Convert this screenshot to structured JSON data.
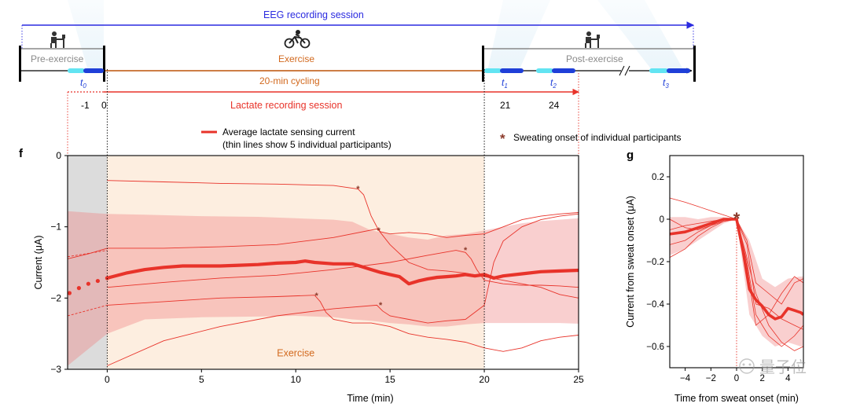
{
  "timeline": {
    "eeg_label": "EEG recording session",
    "phases": {
      "pre": "Pre-exercise",
      "exercise": "Exercise",
      "post": "Post-exercise"
    },
    "cycling_label": "20-min cycling",
    "lactate_label": "Lactate recording session",
    "t_labels": [
      {
        "name": "t0",
        "base": "t",
        "sub": "0"
      },
      {
        "name": "t1",
        "base": "t",
        "sub": "1"
      },
      {
        "name": "t2",
        "base": "t",
        "sub": "2"
      },
      {
        "name": "t3",
        "base": "t",
        "sub": "3"
      }
    ],
    "time_marks": [
      "-1",
      "0",
      "21",
      "24"
    ],
    "icons": [
      "desk-person-icon",
      "cyclist-icon",
      "desk-person-icon"
    ],
    "colors": {
      "eeg": "#2b2be0",
      "exercise": "#d2691e",
      "lactate": "#e8332a",
      "pre_text": "#8a8a8a",
      "post_text": "#8a8a8a",
      "highlight_cyan": "#62e4f2",
      "highlight_blue": "#1f3fd8"
    }
  },
  "legend": {
    "avg_label_line1": "Average lactate sensing current",
    "avg_label_line2": "(thin lines show 5 individual participants)",
    "onset_symbol": "*",
    "onset_label": "Sweating onset of individual participants"
  },
  "chart_data": [
    {
      "panel": "f",
      "type": "line",
      "xlabel": "Time (min)",
      "ylabel": "Current (μA)",
      "xlim": [
        -2.1,
        25
      ],
      "ylim": [
        -3,
        0
      ],
      "xticks": [
        0,
        5,
        10,
        15,
        20,
        25
      ],
      "yticks": [
        0,
        -1,
        -2,
        -3
      ],
      "ytick_labels": [
        "0",
        "−1",
        "−2",
        "−3"
      ],
      "shaded_region_label": "Exercise",
      "exercise_range": [
        0,
        20
      ],
      "baseline_range": [
        -2.1,
        0
      ],
      "average": {
        "x": [
          -2.0,
          -1.5,
          -1.0,
          -0.5,
          0,
          1,
          2,
          3,
          4,
          5,
          6,
          7,
          8,
          9,
          10,
          10.5,
          11,
          12,
          13,
          13.5,
          14,
          14.5,
          15,
          15.5,
          16,
          16.5,
          17,
          17.5,
          18,
          18.5,
          19,
          19.5,
          20,
          20.5,
          21,
          22,
          23,
          24,
          25
        ],
        "y": [
          -1.93,
          -1.86,
          -1.8,
          -1.76,
          -1.72,
          -1.65,
          -1.6,
          -1.57,
          -1.55,
          -1.55,
          -1.55,
          -1.54,
          -1.53,
          -1.51,
          -1.5,
          -1.48,
          -1.5,
          -1.52,
          -1.52,
          -1.56,
          -1.6,
          -1.64,
          -1.67,
          -1.7,
          -1.8,
          -1.76,
          -1.73,
          -1.71,
          -1.7,
          -1.69,
          -1.67,
          -1.69,
          -1.67,
          -1.72,
          -1.69,
          -1.66,
          -1.63,
          -1.62,
          -1.61
        ]
      },
      "band_upper": {
        "x": [
          -2.1,
          0,
          2,
          5,
          8,
          10,
          12,
          13,
          14,
          15,
          16,
          17,
          18,
          19,
          20,
          21,
          22,
          23,
          24,
          25
        ],
        "y": [
          -0.78,
          -0.82,
          -0.83,
          -0.85,
          -0.86,
          -0.88,
          -0.9,
          -0.93,
          -1.05,
          -1.1,
          -1.15,
          -1.18,
          -1.12,
          -1.1,
          -1.05,
          -1.0,
          -0.95,
          -0.92,
          -0.9,
          -0.88
        ]
      },
      "band_lower": {
        "x": [
          -2.1,
          0,
          2,
          5,
          8,
          10,
          12,
          13,
          14,
          15,
          16,
          17,
          18,
          19,
          20,
          21,
          22,
          23,
          24,
          25
        ],
        "y": [
          -2.95,
          -2.5,
          -2.3,
          -2.27,
          -2.26,
          -2.25,
          -2.27,
          -2.3,
          -2.32,
          -2.35,
          -2.37,
          -2.4,
          -2.4,
          -2.37,
          -2.35,
          -2.35,
          -2.35,
          -2.35,
          -2.35,
          -2.36
        ]
      },
      "participants": [
        {
          "x": [
            0,
            3,
            6,
            9,
            12,
            13.3,
            13.6,
            14.0,
            14.4,
            15,
            16,
            17,
            18,
            19,
            20,
            21,
            22,
            23,
            24,
            25
          ],
          "y": [
            -0.35,
            -0.37,
            -0.39,
            -0.4,
            -0.42,
            -0.47,
            -0.55,
            -0.85,
            -1.05,
            -1.25,
            -1.5,
            -1.6,
            -1.62,
            -1.65,
            -1.7,
            -1.75,
            -1.8,
            -1.85,
            -1.95,
            -2.0
          ]
        },
        {
          "x": [
            -2.1,
            -1,
            0,
            3,
            6,
            9,
            12,
            14.3,
            14.5,
            15,
            16,
            17,
            18,
            19,
            20,
            21,
            22,
            23,
            24,
            25
          ],
          "y": [
            -1.45,
            -1.38,
            -1.3,
            -1.3,
            -1.28,
            -1.25,
            -1.15,
            -1.03,
            -1.07,
            -1.1,
            -1.08,
            -1.1,
            -1.15,
            -1.12,
            -1.1,
            -1.0,
            -0.9,
            -0.85,
            -0.82,
            -0.8
          ]
        },
        {
          "x": [
            0,
            3,
            6,
            9,
            12,
            14.3,
            14.6,
            15,
            16,
            17,
            18,
            19,
            19.5,
            20,
            20.5,
            21,
            22,
            23,
            24,
            25
          ],
          "y": [
            -2.95,
            -2.6,
            -2.4,
            -2.25,
            -2.15,
            -2.1,
            -2.18,
            -2.25,
            -2.3,
            -2.35,
            -2.32,
            -2.3,
            -2.2,
            -2.1,
            -1.5,
            -1.2,
            -1.0,
            -0.9,
            -0.85,
            -0.82
          ]
        },
        {
          "x": [
            0,
            3,
            6,
            9,
            11.0,
            11.3,
            11.6,
            12,
            13,
            14,
            15,
            16,
            17,
            18,
            19,
            20,
            21,
            22,
            23,
            24,
            25
          ],
          "y": [
            -2.1,
            -2.05,
            -2.0,
            -1.98,
            -1.96,
            -2.05,
            -2.2,
            -2.3,
            -2.35,
            -2.35,
            -2.4,
            -2.5,
            -2.55,
            -2.58,
            -2.62,
            -2.7,
            -2.75,
            -2.7,
            -2.6,
            -2.55,
            -2.52
          ]
        },
        {
          "x": [
            0,
            3,
            6,
            9,
            12,
            15,
            17,
            18.5,
            19.0,
            19.3,
            19.6,
            20,
            21,
            22,
            23,
            24,
            25
          ],
          "y": [
            -1.85,
            -1.78,
            -1.72,
            -1.68,
            -1.6,
            -1.5,
            -1.4,
            -1.33,
            -1.36,
            -1.45,
            -1.6,
            -1.75,
            -1.8,
            -1.82,
            -1.82,
            -1.83,
            -1.85
          ]
        }
      ],
      "sweat_onsets": [
        {
          "x": 13.3,
          "y": -0.47
        },
        {
          "x": 14.4,
          "y": -1.05
        },
        {
          "x": 11.1,
          "y": -1.97
        },
        {
          "x": 14.5,
          "y": -2.1
        },
        {
          "x": 19.0,
          "y": -1.33
        }
      ]
    },
    {
      "panel": "g",
      "type": "line",
      "xlabel": "Time from sweat onset (min)",
      "ylabel": "Current from sweat onset (μA)",
      "xlim": [
        -5.2,
        5.2
      ],
      "ylim": [
        -0.7,
        0.3
      ],
      "xticks": [
        -4,
        -2,
        0,
        2,
        4
      ],
      "xtick_labels": [
        "−4",
        "−2",
        "0",
        "2",
        "4"
      ],
      "yticks": [
        0.2,
        0,
        -0.2,
        -0.4,
        -0.6
      ],
      "ytick_labels": [
        "0.2",
        "0",
        "−0.2",
        "−0.4",
        "−0.6"
      ],
      "average": {
        "x": [
          -5.2,
          -4,
          -3,
          -2,
          -1,
          0,
          0.5,
          1,
          1.5,
          2,
          2.5,
          3,
          3.5,
          4,
          4.5,
          5,
          5.2
        ],
        "y": [
          -0.07,
          -0.06,
          -0.04,
          -0.02,
          0.0,
          0.0,
          -0.15,
          -0.33,
          -0.38,
          -0.41,
          -0.45,
          -0.47,
          -0.46,
          -0.42,
          -0.43,
          -0.44,
          -0.45
        ]
      },
      "band_upper": {
        "x": [
          -5.2,
          -4,
          -3,
          -2,
          -1,
          0,
          1,
          2,
          3,
          4,
          5,
          5.2
        ],
        "y": [
          0.01,
          0.01,
          0.0,
          0.01,
          0.01,
          0.0,
          -0.1,
          -0.28,
          -0.32,
          -0.28,
          -0.27,
          -0.27
        ]
      },
      "band_lower": {
        "x": [
          -5.2,
          -4,
          -3,
          -2,
          -1,
          0,
          1,
          2,
          3,
          4,
          5,
          5.2
        ],
        "y": [
          -0.17,
          -0.14,
          -0.1,
          -0.06,
          -0.02,
          0.0,
          -0.45,
          -0.55,
          -0.6,
          -0.58,
          -0.6,
          -0.6
        ]
      },
      "participants": [
        {
          "x": [
            -5.2,
            -4,
            -3,
            -2,
            -1,
            0,
            0.8,
            1.5,
            2.5,
            3.5,
            4.5,
            5.2
          ],
          "y": [
            0.1,
            0.08,
            0.06,
            0.04,
            0.02,
            0.0,
            -0.2,
            -0.45,
            -0.55,
            -0.6,
            -0.55,
            -0.5
          ]
        },
        {
          "x": [
            -5.2,
            -4,
            -3,
            -2,
            -1,
            0,
            0.8,
            1.5,
            2.5,
            3.5,
            4.5,
            5.2
          ],
          "y": [
            -0.18,
            -0.14,
            -0.08,
            -0.04,
            -0.01,
            0.0,
            -0.1,
            -0.3,
            -0.35,
            -0.4,
            -0.3,
            -0.28
          ]
        },
        {
          "x": [
            -5.2,
            -4,
            -3,
            -2,
            -1,
            0,
            0.8,
            1.5,
            2.5,
            3.5,
            4.5,
            5.2
          ],
          "y": [
            -0.05,
            -0.03,
            -0.02,
            -0.01,
            0.0,
            0.0,
            -0.18,
            -0.35,
            -0.5,
            -0.58,
            -0.62,
            -0.6
          ]
        },
        {
          "x": [
            -5.2,
            -4,
            -3,
            -2,
            -1,
            0,
            0.8,
            1.5,
            2.5,
            3.5,
            4.5,
            5.2
          ],
          "y": [
            0.0,
            -0.04,
            -0.05,
            -0.03,
            0.0,
            0.0,
            -0.22,
            -0.5,
            -0.45,
            -0.35,
            -0.27,
            -0.3
          ]
        },
        {
          "x": [
            -5.2,
            -4,
            -3,
            -2,
            -1,
            0,
            0.8,
            1.5,
            2.5,
            3.5,
            4.5,
            5.2
          ],
          "y": [
            -0.12,
            -0.1,
            -0.06,
            -0.03,
            -0.01,
            0.0,
            -0.12,
            -0.4,
            -0.42,
            -0.47,
            -0.5,
            -0.52
          ]
        }
      ],
      "onset_marker": {
        "x": 0,
        "y": 0
      }
    }
  ],
  "panel_labels": {
    "f": "f",
    "g": "g"
  },
  "watermark": "量子位"
}
